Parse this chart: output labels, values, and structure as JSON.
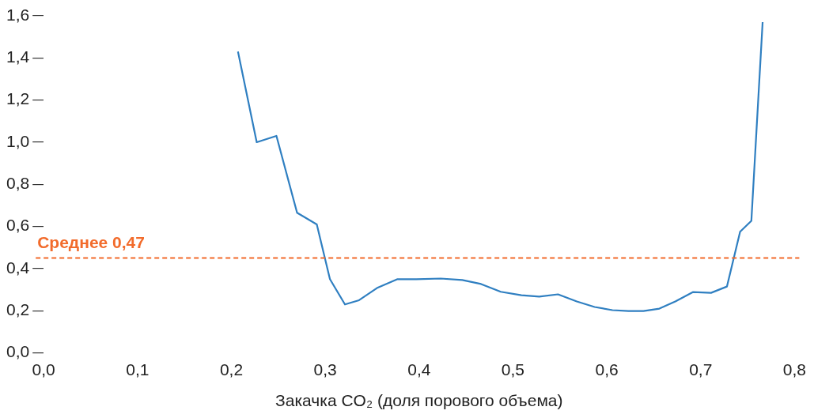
{
  "chart_data": {
    "type": "line",
    "xlabel": "Закачка CO₂ (доля порового объема)",
    "x": [
      0.207,
      0.227,
      0.248,
      0.27,
      0.291,
      0.305,
      0.321,
      0.336,
      0.356,
      0.377,
      0.397,
      0.423,
      0.446,
      0.466,
      0.487,
      0.509,
      0.528,
      0.548,
      0.568,
      0.587,
      0.606,
      0.623,
      0.639,
      0.656,
      0.673,
      0.692,
      0.711,
      0.728,
      0.742,
      0.754,
      0.766
    ],
    "series": [
      {
        "color": "#2f7fc1",
        "values": [
          1.43,
          1.0,
          1.03,
          0.665,
          0.61,
          0.35,
          0.23,
          0.25,
          0.31,
          0.35,
          0.35,
          0.353,
          0.346,
          0.327,
          0.29,
          0.274,
          0.267,
          0.278,
          0.244,
          0.218,
          0.203,
          0.199,
          0.199,
          0.21,
          0.244,
          0.289,
          0.285,
          0.315,
          0.575,
          0.627,
          1.57
        ]
      }
    ],
    "xlim": [
      0,
      0.8
    ],
    "ylim": [
      0,
      1.6
    ],
    "xticks": [
      {
        "value": 0,
        "label": "0,0"
      },
      {
        "value": 0.1,
        "label": "0,1"
      },
      {
        "value": 0.2,
        "label": "0,2"
      },
      {
        "value": 0.3,
        "label": "0,3"
      },
      {
        "value": 0.4,
        "label": "0,4"
      },
      {
        "value": 0.5,
        "label": "0,5"
      },
      {
        "value": 0.6,
        "label": "0,6"
      },
      {
        "value": 0.7,
        "label": "0,7"
      },
      {
        "value": 0.8,
        "label": "0,8"
      }
    ],
    "yticks": [
      {
        "value": 0,
        "label": "0,0"
      },
      {
        "value": 0.2,
        "label": "0,2"
      },
      {
        "value": 0.4,
        "label": "0,4"
      },
      {
        "value": 0.6,
        "label": "0,6"
      },
      {
        "value": 0.8,
        "label": "0,8"
      },
      {
        "value": 1.0,
        "label": "1,0"
      },
      {
        "value": 1.2,
        "label": "1,2"
      },
      {
        "value": 1.4,
        "label": "1,4"
      },
      {
        "value": 1.6,
        "label": "1,6"
      }
    ],
    "ref_lines": [
      {
        "axis": "y",
        "value": 0.45,
        "label": "Среднее 0,47",
        "color": "#f26b2b",
        "line_style": "dashed"
      }
    ],
    "grid": false,
    "legend": false,
    "marker": "none",
    "line_style": "solid"
  }
}
